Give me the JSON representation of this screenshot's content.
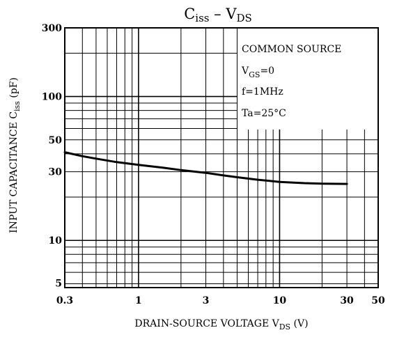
{
  "chart_data": {
    "type": "line",
    "title": {
      "main": "C",
      "sub": "iss",
      "separator": " – ",
      "main2": "V",
      "sub2": "DS"
    },
    "xlabel": {
      "main": "DRAIN-SOURCE VOLTAGE   V",
      "sub": "DS",
      "unit": "(V)"
    },
    "ylabel": {
      "main": "INPUT CAPACITANCE   C",
      "sub": "iss",
      "unit": "(pF)"
    },
    "x_scale": "log",
    "y_scale": "log",
    "xlim": [
      0.3,
      50
    ],
    "ylim": [
      4.7,
      300
    ],
    "x_ticks": [
      {
        "value": 0.3,
        "label": "0.3"
      },
      {
        "value": 1,
        "label": "1"
      },
      {
        "value": 3,
        "label": "3"
      },
      {
        "value": 10,
        "label": "10"
      },
      {
        "value": 30,
        "label": "30"
      },
      {
        "value": 50,
        "label": "50"
      }
    ],
    "y_ticks": [
      {
        "value": 5,
        "label": "5"
      },
      {
        "value": 10,
        "label": "10"
      },
      {
        "value": 30,
        "label": "30"
      },
      {
        "value": 50,
        "label": "50"
      },
      {
        "value": 100,
        "label": "100"
      },
      {
        "value": 300,
        "label": "300"
      }
    ],
    "grid": true,
    "legend": "none",
    "annotations": [
      {
        "main": "COMMON SOURCE"
      },
      {
        "main": "V",
        "sub": "GS",
        "rest": "=0"
      },
      {
        "main": "f=1MHz"
      },
      {
        "main": "Ta=25°C"
      }
    ],
    "series": [
      {
        "x": [
          0.3,
          0.4,
          0.5,
          0.7,
          1,
          1.5,
          2,
          3,
          4,
          5,
          7,
          10,
          15,
          20,
          30
        ],
        "y": [
          41,
          38.5,
          37,
          35,
          33.5,
          32,
          30.8,
          29.5,
          28.3,
          27.5,
          26.4,
          25.5,
          25,
          24.8,
          24.7
        ]
      }
    ]
  },
  "style": {
    "line_color": "#000000",
    "grid_color": "#000000",
    "background": "#ffffff"
  }
}
